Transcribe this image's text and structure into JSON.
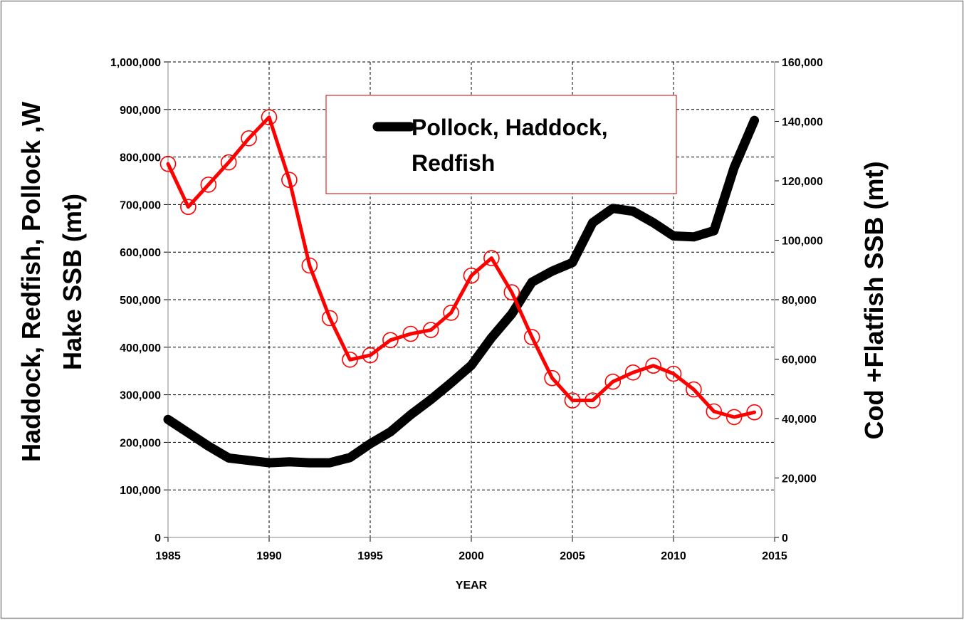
{
  "chart_data": {
    "type": "line",
    "title": "",
    "xlabel": "YEAR",
    "ylabel_left": "Haddock, Redfish, Pollock ,W Hake SSB (mt)",
    "ylabel_right": "Cod +Flatfish SSB (mt)",
    "xlim": [
      1985,
      2015
    ],
    "ylim_left": [
      0,
      1000000
    ],
    "ylim_right": [
      0,
      160000
    ],
    "x_ticks": [
      "1985",
      "1990",
      "1995",
      "2000",
      "2005",
      "2010",
      "2015"
    ],
    "y_left_ticks": [
      "0",
      "100,000",
      "200,000",
      "300,000",
      "400,000",
      "500,000",
      "600,000",
      "700,000",
      "800,000",
      "900,000",
      "1,000,000"
    ],
    "y_right_ticks": [
      "0",
      "20,000",
      "40,000",
      "60,000",
      "80,000",
      "100,000",
      "120,000",
      "140,000",
      "160,000"
    ],
    "grid": true,
    "legend_position": "top-center",
    "legend": {
      "line1": "Pollock, Haddock,",
      "line2": "Redfish"
    },
    "series": [
      {
        "name": "Pollock, Haddock, Redfish",
        "axis": "left",
        "color": "#000000",
        "marker": "none",
        "x": [
          1985,
          1986,
          1987,
          1988,
          1989,
          1990,
          1991,
          1992,
          1993,
          1994,
          1995,
          1996,
          1997,
          1998,
          1999,
          2000,
          2001,
          2002,
          2003,
          2004,
          2005,
          2006,
          2007,
          2008,
          2009,
          2010,
          2011,
          2012,
          2013,
          2014
        ],
        "y": [
          248000,
          220000,
          192000,
          167000,
          162000,
          157000,
          159000,
          157000,
          157000,
          168000,
          197000,
          222000,
          258000,
          290000,
          325000,
          362000,
          420000,
          470000,
          537000,
          560000,
          578000,
          662000,
          692000,
          686000,
          662000,
          634000,
          632000,
          645000,
          778000,
          877000
        ]
      },
      {
        "name": "",
        "axis": "right",
        "color": "#ff0000",
        "marker": "circle",
        "x": [
          1985,
          1986,
          1987,
          1988,
          1989,
          1990,
          1991,
          1992,
          1993,
          1994,
          1995,
          1996,
          1997,
          1998,
          1999,
          2000,
          2001,
          2002,
          2003,
          2004,
          2005,
          2006,
          2007,
          2008,
          2009,
          2010,
          2011,
          2012,
          2013,
          2014
        ],
        "y": [
          125700,
          111200,
          118700,
          126200,
          134300,
          141400,
          120300,
          91500,
          73800,
          59800,
          61300,
          66400,
          68500,
          69800,
          75600,
          88100,
          94000,
          82500,
          67400,
          53600,
          46100,
          46100,
          52400,
          55500,
          57800,
          55100,
          49800,
          42400,
          40500,
          42100
        ]
      }
    ]
  }
}
